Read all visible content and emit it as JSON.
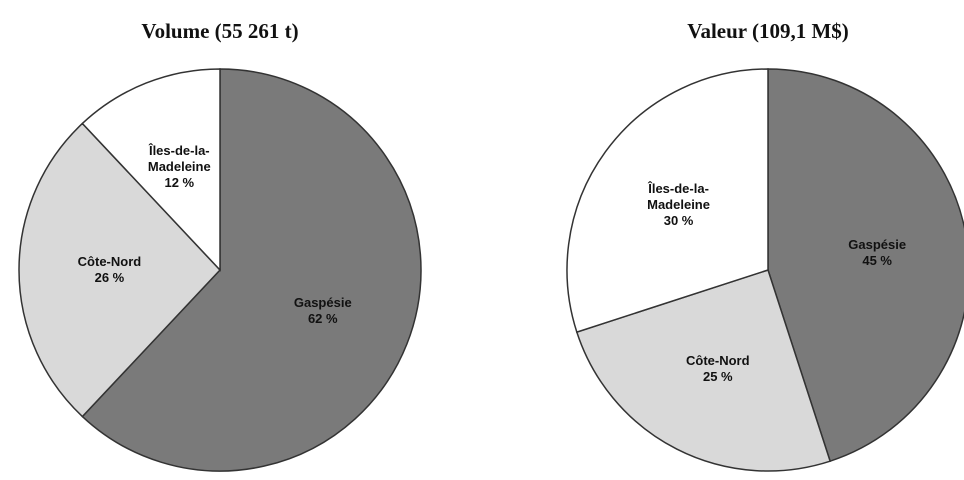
{
  "chart_data": [
    {
      "type": "pie",
      "title": "Volume (55 261 t)",
      "categories": [
        "Gaspésie",
        "Côte-Nord",
        "Îles-de-la-Madeleine"
      ],
      "values": [
        62,
        26,
        12
      ],
      "value_labels": [
        "62 %",
        "26 %",
        "12 %"
      ],
      "colors": [
        "#7a7a7a",
        "#d9d9d9",
        "#ffffff"
      ]
    },
    {
      "type": "pie",
      "title": "Valeur (109,1 M$)",
      "categories": [
        "Gaspésie",
        "Côte-Nord",
        "Îles-de-la-Madeleine"
      ],
      "values": [
        45,
        25,
        30
      ],
      "value_labels": [
        "45 %",
        "25 %",
        "30 %"
      ],
      "colors": [
        "#7a7a7a",
        "#d9d9d9",
        "#ffffff"
      ]
    }
  ]
}
